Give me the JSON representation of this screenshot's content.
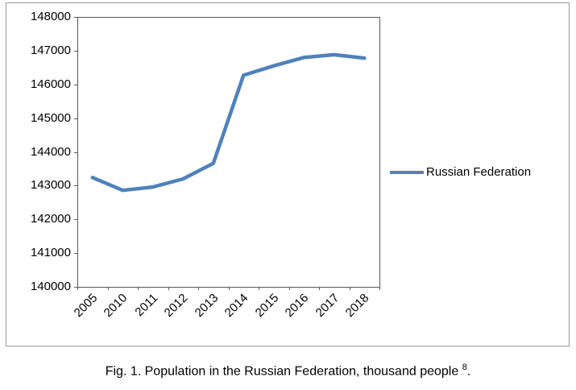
{
  "figure": {
    "caption": {
      "prefix": "Fig. 1. Population in the Russian Federation, thousand people ",
      "superscript": "8",
      "suffix": "."
    }
  },
  "chart_data": {
    "type": "line",
    "title": "",
    "xlabel": "",
    "ylabel": "",
    "categories": [
      "2005",
      "2010",
      "2011",
      "2012",
      "2013",
      "2014",
      "2015",
      "2016",
      "2017",
      "2018"
    ],
    "series": [
      {
        "name": "Russian Federation",
        "color": "#4F81BD",
        "values": [
          143240,
          142860,
          142960,
          143200,
          143660,
          146270,
          146550,
          146800,
          146880,
          146780
        ]
      }
    ],
    "ylim": [
      140000,
      148000
    ],
    "y_tick_step": 1000,
    "grid": false,
    "legend_position": "right",
    "axis_color": "#595959"
  }
}
